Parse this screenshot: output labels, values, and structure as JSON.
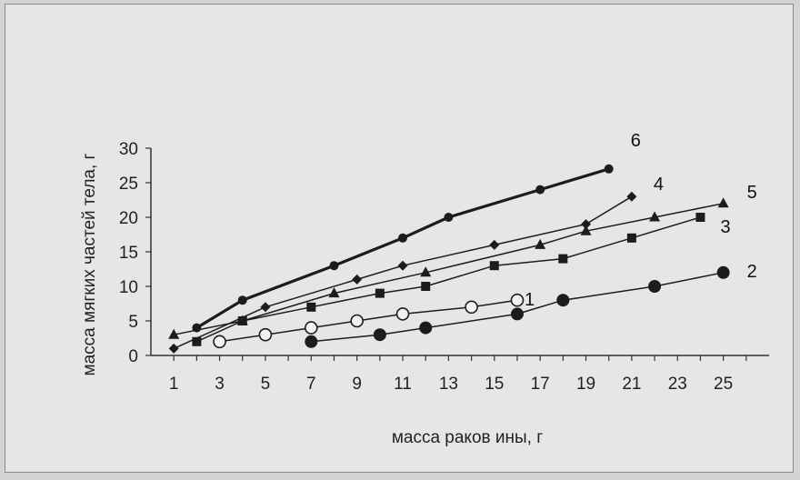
{
  "chart_data": {
    "type": "line",
    "title": "",
    "xlabel": "масса раков ины, г",
    "ylabel": "масса мягких частей тела, г",
    "xlim": [
      0,
      27
    ],
    "ylim": [
      0,
      30
    ],
    "x_ticks": [
      "1",
      "3",
      "5",
      "7",
      "9",
      "11",
      "13",
      "15",
      "17",
      "19",
      "21",
      "23",
      "25"
    ],
    "y_ticks": [
      "0",
      "5",
      "10",
      "15",
      "20",
      "25",
      "30"
    ],
    "grid": false,
    "series": [
      {
        "name": "1",
        "marker": "open-circle",
        "points": [
          [
            3,
            2
          ],
          [
            5,
            3
          ],
          [
            7,
            4
          ],
          [
            9,
            5
          ],
          [
            11,
            6
          ],
          [
            14,
            7
          ],
          [
            16,
            8
          ]
        ]
      },
      {
        "name": "2",
        "marker": "filled-circle",
        "points": [
          [
            7,
            2
          ],
          [
            10,
            3
          ],
          [
            12,
            4
          ],
          [
            16,
            6
          ],
          [
            18,
            8
          ],
          [
            22,
            10
          ],
          [
            25,
            12
          ]
        ]
      },
      {
        "name": "3",
        "marker": "square",
        "points": [
          [
            2,
            2
          ],
          [
            4,
            5
          ],
          [
            7,
            7
          ],
          [
            10,
            9
          ],
          [
            12,
            10
          ],
          [
            15,
            13
          ],
          [
            18,
            14
          ],
          [
            21,
            17
          ],
          [
            24,
            20
          ]
        ]
      },
      {
        "name": "4",
        "marker": "diamond",
        "points": [
          [
            1,
            1
          ],
          [
            5,
            7
          ],
          [
            9,
            11
          ],
          [
            11,
            13
          ],
          [
            15,
            16
          ],
          [
            19,
            19
          ],
          [
            21,
            23
          ]
        ]
      },
      {
        "name": "5",
        "marker": "triangle",
        "points": [
          [
            1,
            3
          ],
          [
            4,
            5
          ],
          [
            8,
            9
          ],
          [
            12,
            12
          ],
          [
            17,
            16
          ],
          [
            19,
            18
          ],
          [
            22,
            20
          ],
          [
            25,
            22
          ]
        ]
      },
      {
        "name": "6",
        "marker": "filled-circle-bold-line",
        "points": [
          [
            2,
            4
          ],
          [
            4,
            8
          ],
          [
            8,
            13
          ],
          [
            11,
            17
          ],
          [
            13,
            20
          ],
          [
            17,
            24
          ],
          [
            20,
            27
          ]
        ]
      }
    ]
  }
}
